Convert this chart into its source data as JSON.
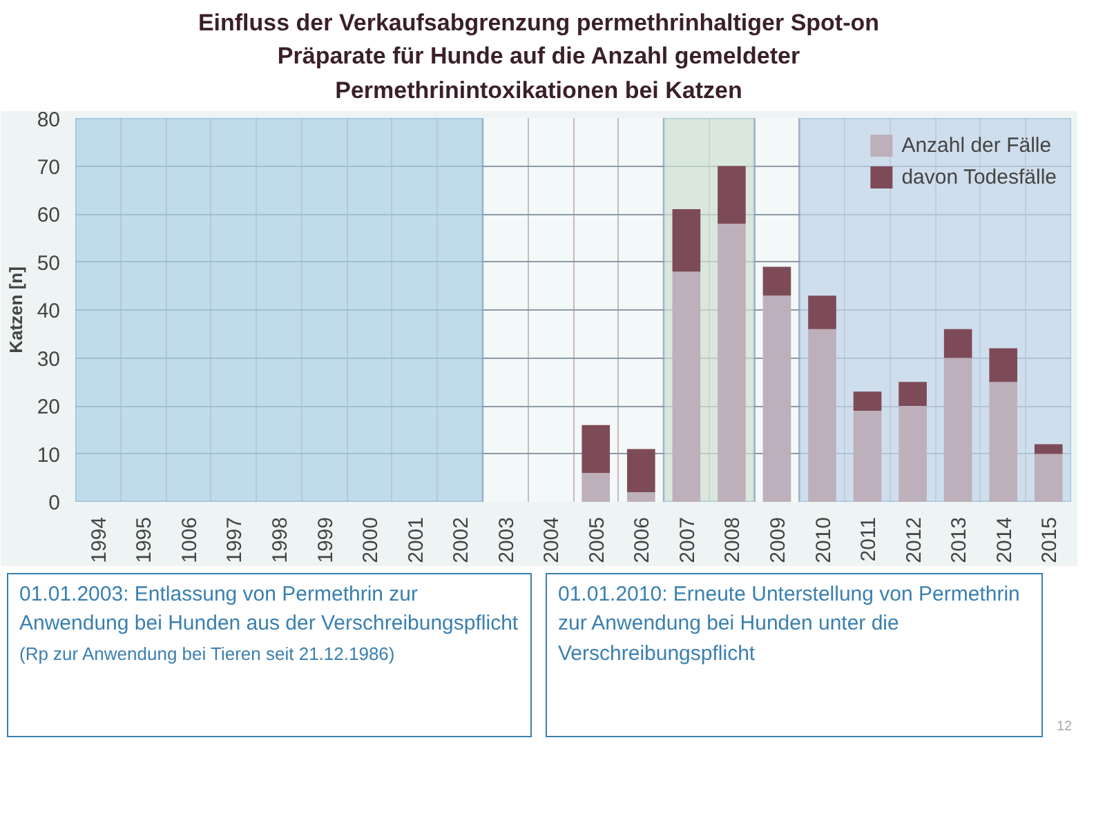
{
  "chart_data": {
    "type": "bar",
    "title": "Einfluss der Verkaufsabgrenzung permethrinhaltiger Spot-on Präparate für Hunde auf die Anzahl gemeldeter Permethrinintoxikationen bei Katzen",
    "ylabel": "Katzen [n]",
    "categories": [
      "1994",
      "1995",
      "1006",
      "1997",
      "1998",
      "1999",
      "2000",
      "2001",
      "2002",
      "2003",
      "2004",
      "2005",
      "2006",
      "2007",
      "2008",
      "2009",
      "2010",
      "2011",
      "2012",
      "2013",
      "2014",
      "2015"
    ],
    "stacked": true,
    "series": [
      {
        "name": "Anzahl der Fälle",
        "color": "#bdb0ba",
        "values": [
          0,
          0,
          0,
          0,
          0,
          0,
          0,
          0,
          0,
          0,
          0,
          6,
          2,
          48,
          58,
          43,
          36,
          19,
          20,
          30,
          25,
          10
        ]
      },
      {
        "name": "davon Todesfälle",
        "color": "#7d4b57",
        "values": [
          0,
          0,
          0,
          0,
          0,
          0,
          0,
          0,
          0,
          0,
          0,
          10,
          9,
          13,
          12,
          6,
          7,
          4,
          5,
          6,
          7,
          2
        ]
      }
    ],
    "ylim": [
      0,
      80
    ],
    "yticks": [
      0,
      10,
      20,
      30,
      40,
      50,
      60,
      70,
      80
    ],
    "grid": true,
    "legend": "top right",
    "bands": [
      {
        "axis": "x",
        "from": "1994",
        "to": "2002",
        "color": "#a9cfe3"
      },
      {
        "axis": "x",
        "from": "2007",
        "to": "2008",
        "color": "#cfe0d2"
      },
      {
        "axis": "x",
        "from": "2010",
        "to": "2015",
        "color": "#bfd3e8"
      }
    ],
    "annotations": [
      "01.01.2003: Entlassung von Permethrin zur Anwendung bei Hunden aus der Verschreibungspflicht",
      "(Rp zur Anwendung bei Tieren seit 21.12.1986)",
      "01.01.2010: Erneute Unterstellung von Permethrin zur Anwendung bei Hunden unter die Verschreibungspflicht",
      "12"
    ]
  }
}
